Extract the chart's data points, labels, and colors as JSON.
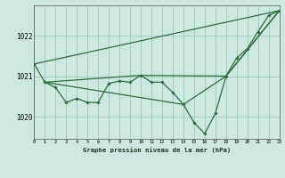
{
  "background_color": "#cce8e0",
  "grid_color": "#99ccbb",
  "line_color": "#2d6e3a",
  "marker_color": "#2d6e3a",
  "title": "Graphe pression niveau de la mer (hPa)",
  "xlim": [
    0,
    23
  ],
  "ylim": [
    1019.45,
    1022.75
  ],
  "yticks": [
    1020,
    1021,
    1022
  ],
  "xtick_labels": [
    "0",
    "1",
    "2",
    "3",
    "4",
    "5",
    "6",
    "7",
    "8",
    "9",
    "10",
    "11",
    "12",
    "13",
    "14",
    "15",
    "16",
    "17",
    "18",
    "19",
    "20",
    "21",
    "22",
    "23"
  ],
  "series1_x": [
    0,
    1,
    2,
    3,
    4,
    5,
    6,
    7,
    8,
    9,
    10,
    11,
    12,
    13,
    14,
    15,
    16,
    17,
    18,
    19,
    20,
    21,
    22,
    23
  ],
  "series1_y": [
    1021.3,
    1020.85,
    1020.72,
    1020.35,
    1020.45,
    1020.35,
    1020.35,
    1020.82,
    1020.88,
    1020.85,
    1021.02,
    1020.85,
    1020.85,
    1020.6,
    1020.3,
    1019.85,
    1019.58,
    1020.08,
    1021.0,
    1021.45,
    1021.68,
    1022.1,
    1022.5,
    1022.62
  ],
  "series2_x": [
    0,
    23
  ],
  "series2_y": [
    1021.3,
    1022.62
  ],
  "series3_x": [
    1,
    10,
    18,
    23
  ],
  "series3_y": [
    1020.85,
    1021.02,
    1021.0,
    1022.62
  ],
  "series4_x": [
    1,
    14,
    18,
    23
  ],
  "series4_y": [
    1020.85,
    1020.3,
    1021.0,
    1022.62
  ]
}
